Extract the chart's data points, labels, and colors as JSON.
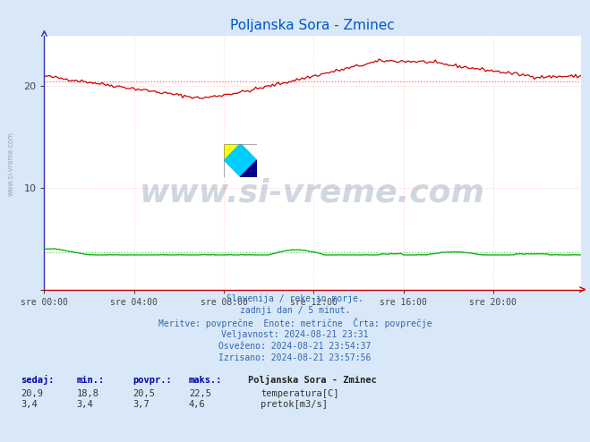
{
  "title": "Poljanska Sora - Zminec",
  "title_color": "#0055cc",
  "bg_color": "#d8e8f8",
  "plot_bg_color": "#ffffff",
  "ylim": [
    0,
    25
  ],
  "yticks": [
    0,
    10,
    20
  ],
  "x_tick_labels": [
    "sre 00:00",
    "sre 04:00",
    "sre 08:00",
    "sre 12:00",
    "sre 16:00",
    "sre 20:00"
  ],
  "x_tick_positions": [
    0,
    48,
    96,
    144,
    192,
    240
  ],
  "grid_color_v": "#ffbbbb",
  "grid_color_h": "#ffbbbb",
  "temp_color": "#cc0000",
  "flow_color": "#00aa00",
  "avg_temp_color": "#ff6666",
  "avg_flow_color": "#66cc66",
  "avg_temp": 20.5,
  "avg_flow": 3.7,
  "footer_lines": [
    "Slovenija / reke in morje.",
    "zadnji dan / 5 minut.",
    "Meritve: povprečne  Enote: metrične  Črta: povprečje",
    "Veljavnost: 2024-08-21 23:31",
    "Osveženo: 2024-08-21 23:54:37",
    "Izrisano: 2024-08-21 23:57:56"
  ],
  "table_headers": [
    "sedaj:",
    "min.:",
    "povpr.:",
    "maks.:"
  ],
  "table_temp": [
    "20,9",
    "18,8",
    "20,5",
    "22,5"
  ],
  "table_flow": [
    "3,4",
    "3,4",
    "3,7",
    "4,6"
  ],
  "station_label": "Poljanska Sora - Zminec",
  "legend_temp": "temperatura[C]",
  "legend_flow": "pretok[m3/s]",
  "watermark": "www.si-vreme.com",
  "watermark_color": "#1a3a6a",
  "sidebar_text": "www.si-vreme.com",
  "n_points": 288
}
